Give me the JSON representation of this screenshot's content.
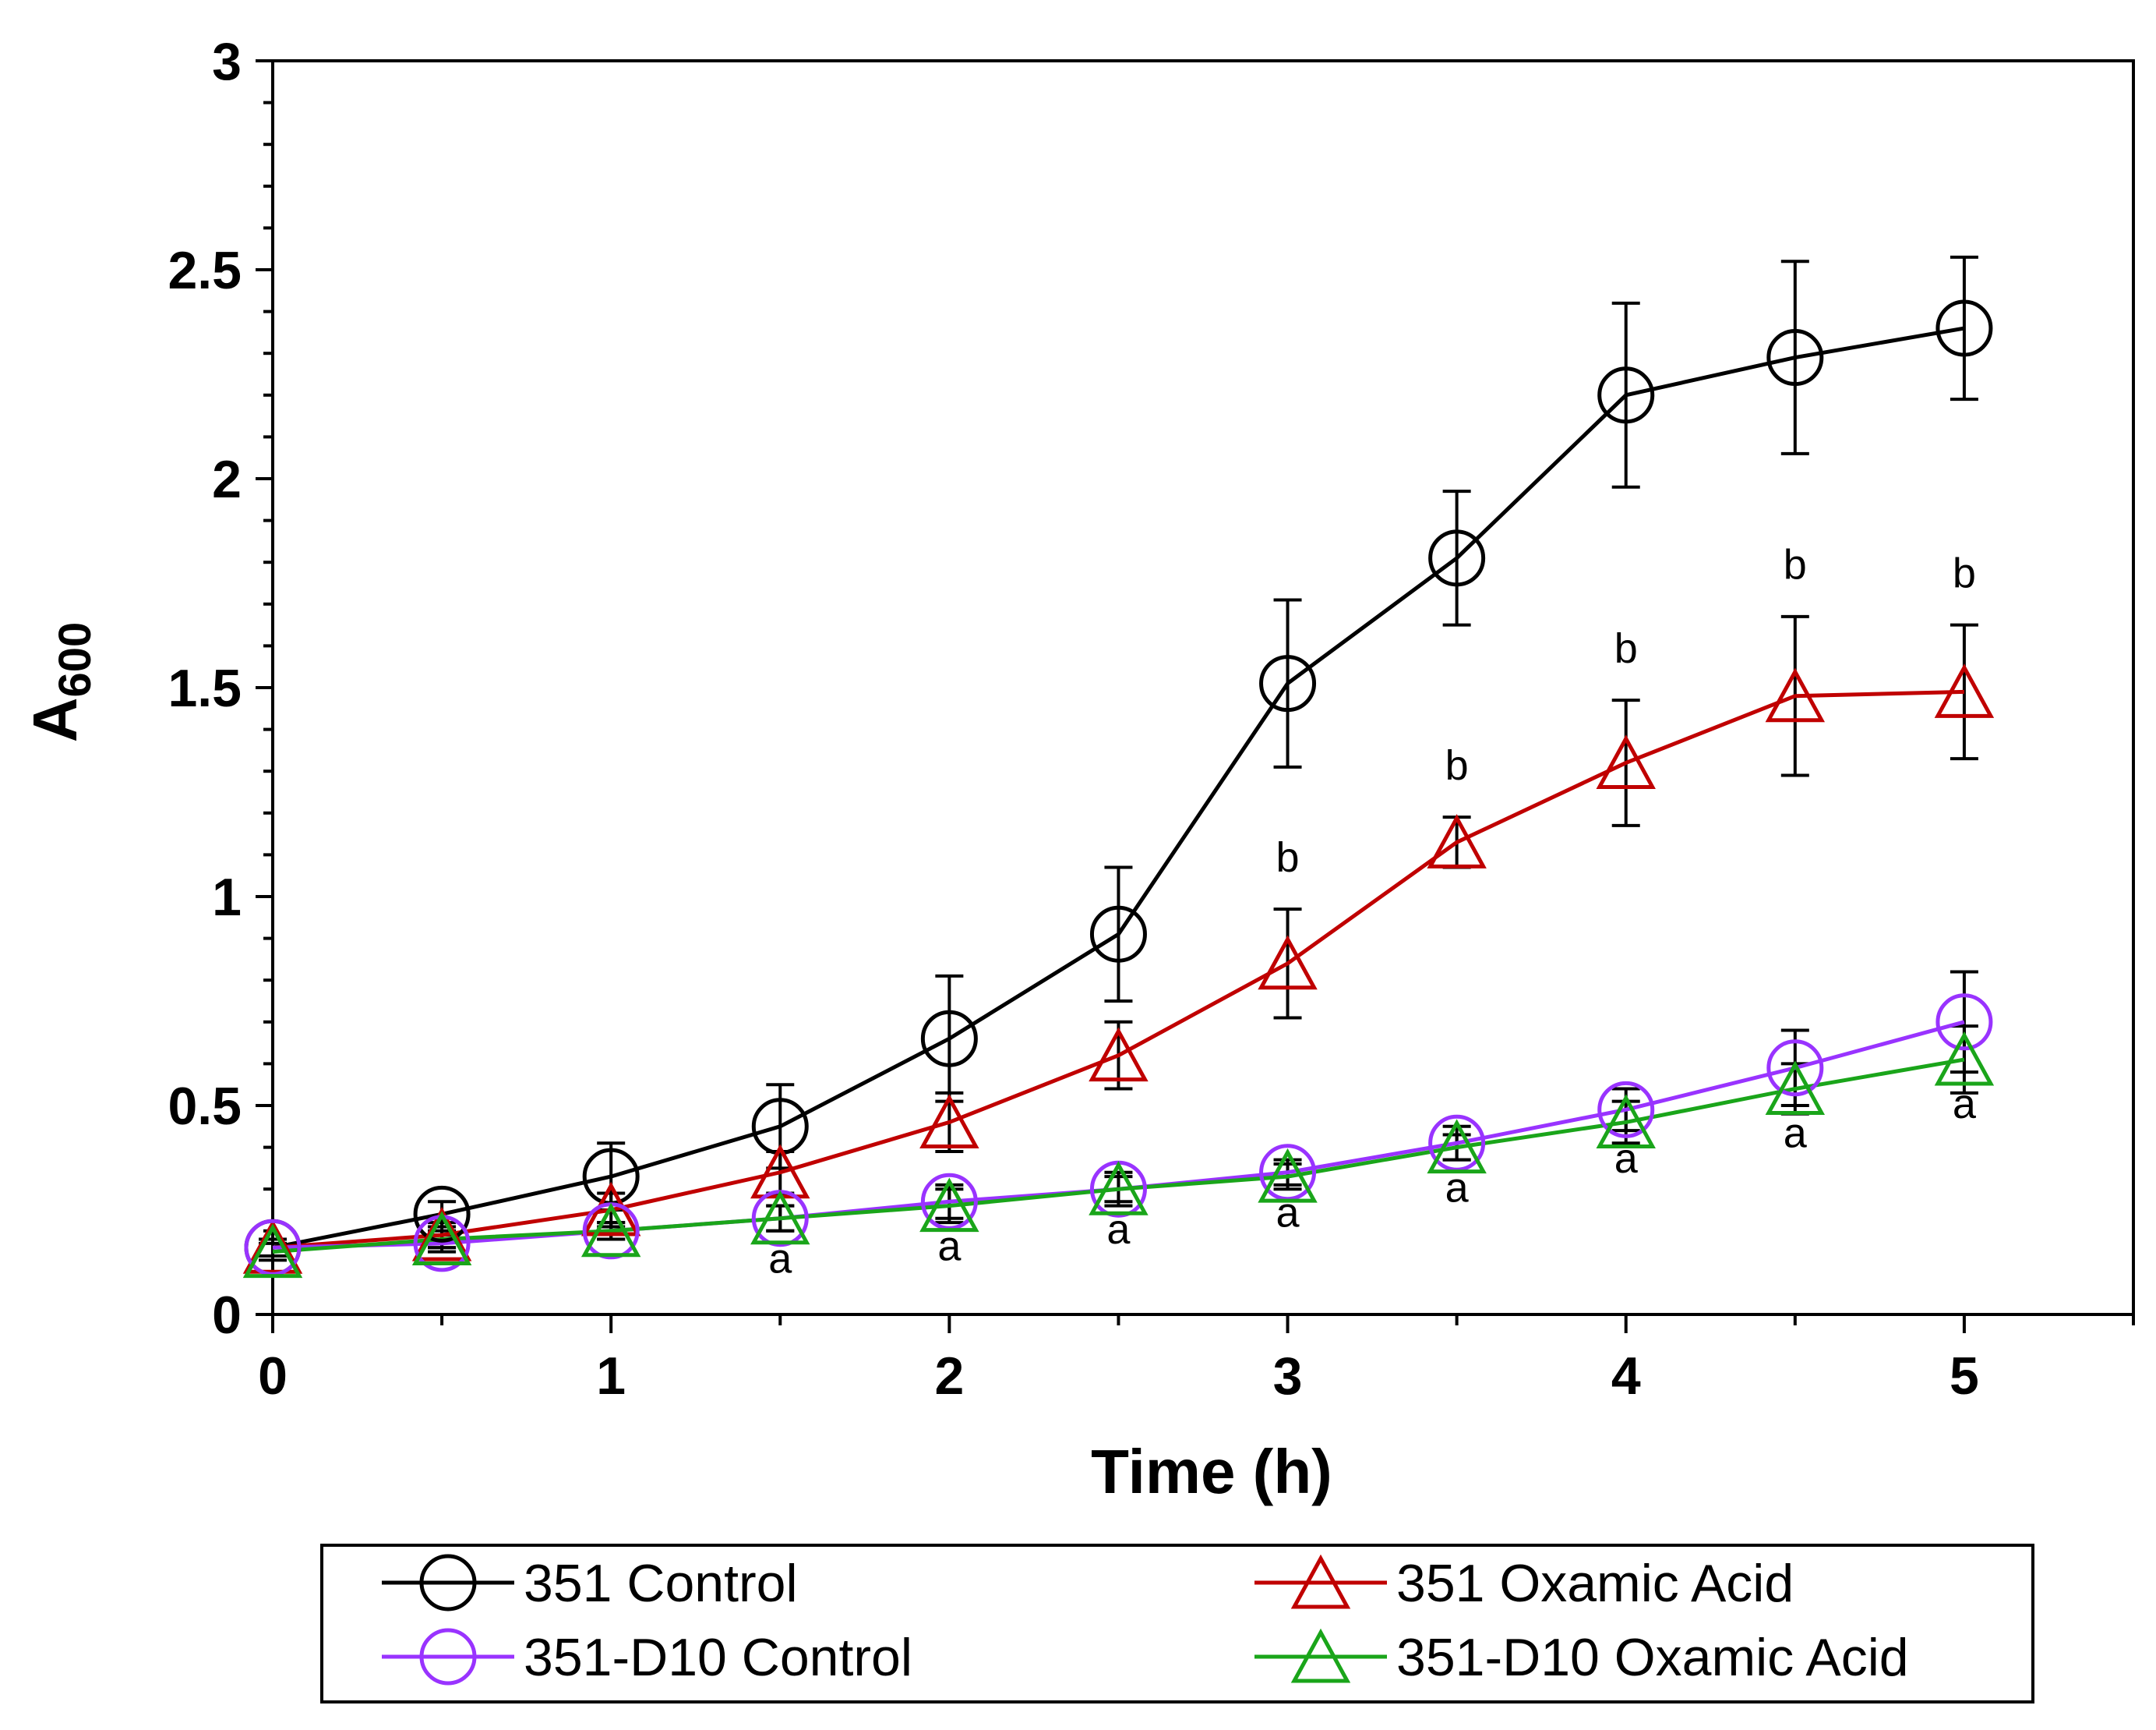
{
  "chart_data": {
    "type": "line",
    "xlabel": "Time (h)",
    "ylabel_main": "A",
    "ylabel_sub": "600",
    "xlim": [
      0,
      5.5
    ],
    "ylim": [
      0,
      3
    ],
    "xticks": [
      "0",
      "1",
      "2",
      "3",
      "4",
      "5"
    ],
    "yticks": [
      "0",
      "0.5",
      "1",
      "1.5",
      "2",
      "2.5",
      "3"
    ],
    "grid": false,
    "legend_position": "bottom",
    "x": [
      0,
      0.5,
      1,
      1.5,
      2,
      2.5,
      3,
      3.5,
      4,
      4.5,
      5
    ],
    "series": [
      {
        "name": "351 Control",
        "color": "#000000",
        "marker": "circle",
        "values": [
          0.16,
          0.24,
          0.33,
          0.45,
          0.66,
          0.91,
          1.51,
          1.81,
          2.2,
          2.29,
          2.36
        ],
        "errors": [
          0.02,
          0.03,
          0.08,
          0.1,
          0.15,
          0.16,
          0.2,
          0.16,
          0.22,
          0.23,
          0.17
        ]
      },
      {
        "name": "351 Oxamic Acid",
        "color": "#c00000",
        "marker": "triangle",
        "values": [
          0.16,
          0.19,
          0.25,
          0.34,
          0.46,
          0.62,
          0.84,
          1.13,
          1.32,
          1.48,
          1.49
        ],
        "errors": [
          0.02,
          0.03,
          0.04,
          0.05,
          0.07,
          0.08,
          0.13,
          0.06,
          0.15,
          0.19,
          0.16
        ]
      },
      {
        "name": "351-D10 Control",
        "color": "#9933ff",
        "marker": "circle",
        "values": [
          0.16,
          0.17,
          0.2,
          0.23,
          0.27,
          0.3,
          0.34,
          0.41,
          0.49,
          0.59,
          0.7
        ],
        "errors": [
          0.02,
          0.02,
          0.02,
          0.03,
          0.04,
          0.04,
          0.03,
          0.04,
          0.05,
          0.09,
          0.12
        ]
      },
      {
        "name": "351-D10 Oxamic Acid",
        "color": "#1aa51a",
        "marker": "triangle",
        "values": [
          0.15,
          0.18,
          0.2,
          0.23,
          0.26,
          0.3,
          0.33,
          0.4,
          0.46,
          0.54,
          0.61
        ],
        "errors": [
          0.02,
          0.02,
          0.02,
          0.03,
          0.04,
          0.03,
          0.03,
          0.03,
          0.05,
          0.06,
          0.08
        ]
      }
    ],
    "annotations": [
      {
        "x": 1.5,
        "y": 0.1,
        "text": "a"
      },
      {
        "x": 2,
        "y": 0.13,
        "text": "a"
      },
      {
        "x": 2.5,
        "y": 0.17,
        "text": "a"
      },
      {
        "x": 3,
        "y": 0.21,
        "text": "a"
      },
      {
        "x": 3.5,
        "y": 0.27,
        "text": "a"
      },
      {
        "x": 4,
        "y": 0.34,
        "text": "a"
      },
      {
        "x": 4.5,
        "y": 0.4,
        "text": "a"
      },
      {
        "x": 5,
        "y": 0.47,
        "text": "a"
      },
      {
        "x": 3,
        "y": 1.06,
        "text": "b"
      },
      {
        "x": 3.5,
        "y": 1.28,
        "text": "b"
      },
      {
        "x": 4,
        "y": 1.56,
        "text": "b"
      },
      {
        "x": 4.5,
        "y": 1.76,
        "text": "b"
      },
      {
        "x": 5,
        "y": 1.74,
        "text": "b"
      }
    ]
  }
}
